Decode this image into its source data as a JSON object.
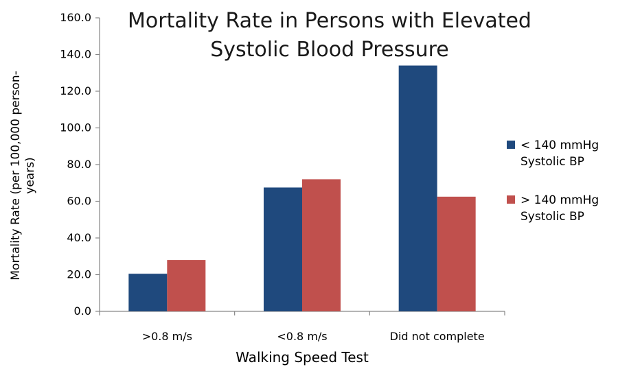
{
  "chart_data": {
    "type": "bar",
    "title_lines": [
      "Mortality Rate in Persons with Elevated",
      "Systolic Blood Pressure"
    ],
    "xlabel": "Walking Speed Test",
    "ylabel_lines": [
      "Mortality Rate (per 100,000 person-",
      "years)"
    ],
    "categories": [
      ">0.8 m/s",
      "<0.8 m/s",
      "Did not complete"
    ],
    "series": [
      {
        "name": "< 140 mmHg Systolic BP",
        "legend_lines": [
          "< 140 mmHg",
          "Systolic BP"
        ],
        "color": "#1F497D",
        "values": [
          20.5,
          67.5,
          134.0
        ]
      },
      {
        "name": "> 140 mmHg Systolic BP",
        "legend_lines": [
          "> 140 mmHg",
          "Systolic BP"
        ],
        "color": "#C0504D",
        "values": [
          28.0,
          72.0,
          62.5
        ]
      }
    ],
    "ylim": [
      0,
      160
    ],
    "yticks": [
      "0.0",
      "20.0",
      "40.0",
      "60.0",
      "80.0",
      "100.0",
      "120.0",
      "140.0",
      "160.0"
    ],
    "grid": false,
    "legend_position": "right"
  }
}
